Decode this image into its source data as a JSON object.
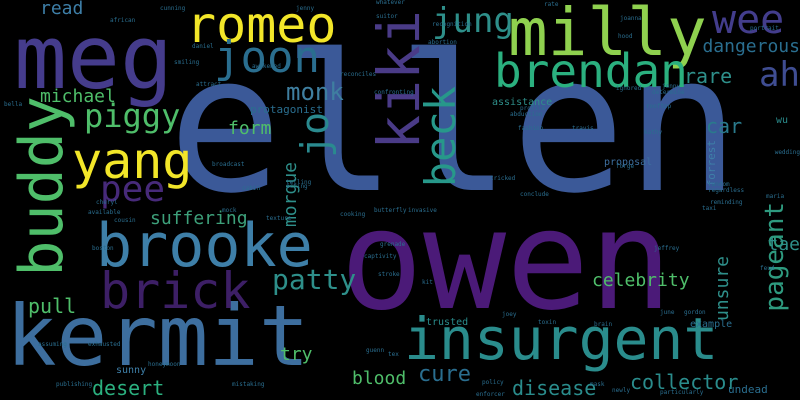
{
  "words": [
    {
      "text": "ellen",
      "color": "#3b5998",
      "vertical": false
    },
    {
      "text": "owen",
      "color": "#4b1a78",
      "vertical": false
    },
    {
      "text": "meg",
      "color": "#453c8c",
      "vertical": false
    },
    {
      "text": "kermit",
      "color": "#3d6e9e",
      "vertical": false
    },
    {
      "text": "insurgent",
      "color": "#2a8c8c",
      "vertical": false
    },
    {
      "text": "brooke",
      "color": "#3e7fa8",
      "vertical": false
    },
    {
      "text": "milly",
      "color": "#8fd14f",
      "vertical": false
    },
    {
      "text": "romeo",
      "color": "#f2e629",
      "vertical": false
    },
    {
      "text": "buddy",
      "color": "#4fbe6a",
      "vertical": true
    },
    {
      "text": "kiki",
      "color": "#4a3b87",
      "vertical": true
    },
    {
      "text": "brendan",
      "color": "#2bb07f",
      "vertical": false
    },
    {
      "text": "yang",
      "color": "#f2e629",
      "vertical": false
    },
    {
      "text": "brick",
      "color": "#3d1f66",
      "vertical": false
    },
    {
      "text": "jung",
      "color": "#2e8f8a",
      "vertical": false
    },
    {
      "text": "joon",
      "color": "#2a6e8f",
      "vertical": false
    },
    {
      "text": "wee",
      "color": "#433d8c",
      "vertical": false
    },
    {
      "text": "ah",
      "color": "#3f4d92",
      "vertical": false
    },
    {
      "text": "beck",
      "color": "#27988a",
      "vertical": true
    },
    {
      "text": "jo",
      "color": "#2a8a8f",
      "vertical": true
    },
    {
      "text": "piggy",
      "color": "#4fbe6a",
      "vertical": false
    },
    {
      "text": "pee",
      "color": "#472a7a",
      "vertical": false
    },
    {
      "text": "michael",
      "color": "#4fbe6a",
      "vertical": false
    },
    {
      "text": "monk",
      "color": "#3f7fa0",
      "vertical": false
    },
    {
      "text": "patty",
      "color": "#2e8f8a",
      "vertical": false
    },
    {
      "text": "morgue",
      "color": "#2e8f8a",
      "vertical": true
    },
    {
      "text": "pageant",
      "color": "#2e9a7f",
      "vertical": true
    },
    {
      "text": "cure",
      "color": "#2a6e8f",
      "vertical": false
    },
    {
      "text": "blood",
      "color": "#4fbe6a",
      "vertical": false
    },
    {
      "text": "celebrity",
      "color": "#4fbe6a",
      "vertical": false
    },
    {
      "text": "collector",
      "color": "#2a8c8c",
      "vertical": false
    },
    {
      "text": "desert",
      "color": "#2bb07f",
      "vertical": false
    },
    {
      "text": "suffering",
      "color": "#3da07a",
      "vertical": false
    },
    {
      "text": "disease",
      "color": "#2a8c8c",
      "vertical": false
    },
    {
      "text": "dangerous",
      "color": "#2a6e8f",
      "vertical": false
    },
    {
      "text": "rare",
      "color": "#2e8f8a",
      "vertical": false
    },
    {
      "text": "car",
      "color": "#2a7a8c",
      "vertical": false
    },
    {
      "text": "form",
      "color": "#4fbe6a",
      "vertical": false
    },
    {
      "text": "pull",
      "color": "#4fbe6a",
      "vertical": false
    },
    {
      "text": "try",
      "color": "#4fbe6a",
      "vertical": false
    },
    {
      "text": "unsure",
      "color": "#2e8f8a",
      "vertical": true
    },
    {
      "text": "tae",
      "color": "#2e8f8a",
      "vertical": false
    },
    {
      "text": "read",
      "color": "#3e7fa8",
      "vertical": false
    },
    {
      "text": "protagonist",
      "color": "#2a6e8f",
      "vertical": false
    },
    {
      "text": "trusted",
      "color": "#2a8c8c",
      "vertical": false
    },
    {
      "text": "assistance",
      "color": "#2e8f8a",
      "vertical": false
    },
    {
      "text": "proposal",
      "color": "#3d6e9e",
      "vertical": false
    },
    {
      "text": "forrest",
      "color": "#3e7fa8",
      "vertical": true
    },
    {
      "text": "sunny",
      "color": "#3e7fa8",
      "vertical": false
    },
    {
      "text": "example",
      "color": "#2a6e8f",
      "vertical": false
    },
    {
      "text": "undead",
      "color": "#2a6e8f",
      "vertical": false
    },
    {
      "text": "wu",
      "color": "#2a8c8c",
      "vertical": false
    },
    {
      "text": "forge",
      "color": "#2a6e8f",
      "vertical": false
    },
    {
      "text": "travis",
      "color": "#2a6e8f",
      "vertical": false
    },
    {
      "text": "fashion",
      "color": "#2a6e8f",
      "vertical": false
    },
    {
      "text": "butterfly",
      "color": "#2a6e8f",
      "vertical": false
    },
    {
      "text": "invasive",
      "color": "#2a6e8f",
      "vertical": false
    },
    {
      "text": "cooking",
      "color": "#2a6e8f",
      "vertical": false
    },
    {
      "text": "texture",
      "color": "#2a6e8f",
      "vertical": false
    },
    {
      "text": "tricked",
      "color": "#2a6e8f",
      "vertical": false
    },
    {
      "text": "conclude",
      "color": "#2a6e8f",
      "vertical": false
    },
    {
      "text": "abduction",
      "color": "#2a6e8f",
      "vertical": false
    },
    {
      "text": "profile",
      "color": "#2a6e8f",
      "vertical": false
    },
    {
      "text": "confronting",
      "color": "#2a6e8f",
      "vertical": false
    },
    {
      "text": "reconciles",
      "color": "#2a6e8f",
      "vertical": false
    },
    {
      "text": "awakened",
      "color": "#2a6e8f",
      "vertical": false
    },
    {
      "text": "attract",
      "color": "#2a6e8f",
      "vertical": false
    },
    {
      "text": "cunning",
      "color": "#2a6e8f",
      "vertical": false
    },
    {
      "text": "african",
      "color": "#2a6e8f",
      "vertical": false
    },
    {
      "text": "joanna",
      "color": "#2a6e8f",
      "vertical": false
    },
    {
      "text": "portrait",
      "color": "#2a6e8f",
      "vertical": false
    },
    {
      "text": "rate",
      "color": "#2a6e8f",
      "vertical": false
    },
    {
      "text": "hood",
      "color": "#2a6e8f",
      "vertical": false
    },
    {
      "text": "ignored",
      "color": "#2a6e8f",
      "vertical": false
    },
    {
      "text": "determine",
      "color": "#2a6e8f",
      "vertical": false
    },
    {
      "text": "rooftop",
      "color": "#2a6e8f",
      "vertical": false
    },
    {
      "text": "kathy",
      "color": "#2a6e8f",
      "vertical": false
    },
    {
      "text": "random",
      "color": "#2a6e8f",
      "vertical": false
    },
    {
      "text": "regardless",
      "color": "#2a6e8f",
      "vertical": false
    },
    {
      "text": "reminding",
      "color": "#2a6e8f",
      "vertical": false
    },
    {
      "text": "taxi",
      "color": "#2a6e8f",
      "vertical": false
    },
    {
      "text": "jeffrey",
      "color": "#2a6e8f",
      "vertical": false
    },
    {
      "text": "feud",
      "color": "#2a6e8f",
      "vertical": false
    },
    {
      "text": "joey",
      "color": "#2a6e8f",
      "vertical": false
    },
    {
      "text": "toxin",
      "color": "#2a6e8f",
      "vertical": false
    },
    {
      "text": "brain",
      "color": "#2a6e8f",
      "vertical": false
    },
    {
      "text": "june",
      "color": "#2a6e8f",
      "vertical": false
    },
    {
      "text": "gordon",
      "color": "#2a6e8f",
      "vertical": false
    },
    {
      "text": "tex",
      "color": "#2a6e8f",
      "vertical": false
    },
    {
      "text": "guenn",
      "color": "#2a6e8f",
      "vertical": false
    },
    {
      "text": "honeymoon",
      "color": "#2a6e8f",
      "vertical": false
    },
    {
      "text": "mistaking",
      "color": "#2a6e8f",
      "vertical": false
    },
    {
      "text": "publishing",
      "color": "#2a6e8f",
      "vertical": false
    },
    {
      "text": "exhausted",
      "color": "#2a6e8f",
      "vertical": false
    },
    {
      "text": "assuming",
      "color": "#2a6e8f",
      "vertical": false
    },
    {
      "text": "policy",
      "color": "#2a6e8f",
      "vertical": false
    },
    {
      "text": "enforcer",
      "color": "#2a6e8f",
      "vertical": false
    },
    {
      "text": "particularly",
      "color": "#2a6e8f",
      "vertical": false
    },
    {
      "text": "mask",
      "color": "#2a6e8f",
      "vertical": false
    },
    {
      "text": "newly",
      "color": "#2a6e8f",
      "vertical": false
    },
    {
      "text": "bella",
      "color": "#2a6e8f",
      "vertical": false
    },
    {
      "text": "available",
      "color": "#2a6e8f",
      "vertical": false
    },
    {
      "text": "cheryl",
      "color": "#2a6e8f",
      "vertical": false
    },
    {
      "text": "telling",
      "color": "#2a6e8f",
      "vertical": false
    },
    {
      "text": "smiling",
      "color": "#2a6e8f",
      "vertical": false
    },
    {
      "text": "cousin",
      "color": "#2a6e8f",
      "vertical": false
    },
    {
      "text": "mock",
      "color": "#2a6e8f",
      "vertical": false
    },
    {
      "text": "grenade",
      "color": "#2a6e8f",
      "vertical": false
    },
    {
      "text": "captivity",
      "color": "#2a6e8f",
      "vertical": false
    },
    {
      "text": "stroke",
      "color": "#2a6e8f",
      "vertical": false
    },
    {
      "text": "kit",
      "color": "#2a6e8f",
      "vertical": false
    },
    {
      "text": "broadcast",
      "color": "#2a6e8f",
      "vertical": false
    },
    {
      "text": "cabin",
      "color": "#2a6e8f",
      "vertical": false
    },
    {
      "text": "daniel",
      "color": "#2a6e8f",
      "vertical": false
    },
    {
      "text": "jenny",
      "color": "#2a6e8f",
      "vertical": false
    },
    {
      "text": "jonny",
      "color": "#2a6e8f",
      "vertical": false
    },
    {
      "text": "acting",
      "color": "#2a6e8f",
      "vertical": false
    },
    {
      "text": "suitor",
      "color": "#2a6e8f",
      "vertical": false
    },
    {
      "text": "whatever",
      "color": "#2a6e8f",
      "vertical": false
    },
    {
      "text": "recognition",
      "color": "#2a6e8f",
      "vertical": false
    },
    {
      "text": "abortion",
      "color": "#2a6e8f",
      "vertical": false
    },
    {
      "text": "boston",
      "color": "#2a6e8f",
      "vertical": false
    },
    {
      "text": "maria",
      "color": "#2a6e8f",
      "vertical": false
    },
    {
      "text": "wedding",
      "color": "#2a6e8f",
      "vertical": false
    }
  ]
}
